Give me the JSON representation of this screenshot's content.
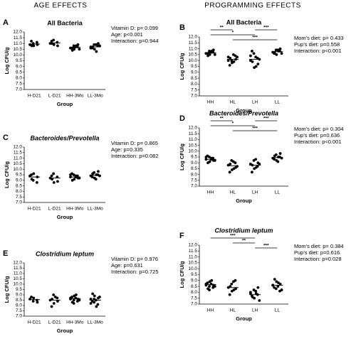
{
  "headers": [
    "AGE EFFECTS",
    "PROGRAMMING EFFECTS"
  ],
  "chart_data": [
    {
      "type": "dot",
      "panel": "A",
      "title": "All Bacteria",
      "ylabel": "Log CFU/g",
      "xlabel": "Group",
      "categories": [
        "H-D21",
        "L-D21",
        "HH-3Mo",
        "LL-3Mo"
      ],
      "points": [
        [
          10.9,
          11.0,
          10.8,
          11.1,
          10.9,
          11.2,
          10.8
        ],
        [
          11.0,
          11.3,
          10.9,
          11.1,
          10.8,
          11.2,
          11.0
        ],
        [
          10.6,
          10.8,
          10.5,
          10.7,
          10.9,
          10.6,
          10.4,
          10.7,
          10.8,
          10.5,
          10.6,
          10.7
        ],
        [
          10.7,
          10.9,
          10.5,
          10.8,
          11.0,
          10.6,
          10.7,
          10.9,
          10.3,
          10.8,
          10.6
        ]
      ],
      "means": [
        10.95,
        11.05,
        10.65,
        10.7
      ],
      "stats": [
        "Vitamin D: p= 0.099",
        "Age: p<0.001",
        "Interaction: p=0.944"
      ],
      "ylim": [
        7,
        12
      ],
      "yticks": [
        {
          "value": 7,
          "label": "7.0"
        },
        {
          "value": 7.5,
          "label": "7.5"
        },
        {
          "value": 8,
          "label": "8.0"
        },
        {
          "value": 8.5,
          "label": "8.5"
        },
        {
          "value": 9,
          "label": "9.0"
        },
        {
          "value": 9.5,
          "label": "9.5"
        },
        {
          "value": 10,
          "label": "10.0"
        },
        {
          "value": 10.5,
          "label": "10.5"
        },
        {
          "value": 11,
          "label": "11.0"
        },
        {
          "value": 11.5,
          "label": "11.5"
        },
        {
          "value": 12,
          "label": "12.0"
        }
      ]
    },
    {
      "type": "dot",
      "panel": "B",
      "title": "All Bacteria",
      "ylabel": "Log CFU/g",
      "xlabel": "Group",
      "categories": [
        "HH",
        "HL",
        "LH",
        "LL"
      ],
      "points": [
        [
          10.6,
          10.8,
          10.5,
          10.7,
          10.9,
          10.6,
          10.4,
          10.7,
          10.8,
          10.5,
          10.6,
          10.7
        ],
        [
          10.3,
          10.0,
          9.8,
          10.4,
          10.1,
          9.6,
          10.2,
          10.5,
          9.9,
          10.3,
          10.0
        ],
        [
          10.0,
          10.6,
          9.4,
          10.2,
          9.7,
          10.8,
          9.9,
          10.3,
          9.5,
          10.1,
          10.4
        ],
        [
          10.7,
          10.9,
          10.5,
          10.8,
          11.0,
          10.6,
          10.7,
          10.9,
          10.8,
          10.6
        ]
      ],
      "means": [
        10.65,
        10.1,
        10.1,
        10.75
      ],
      "stats": [
        "Mom's diet: p= 0.433",
        "Pup's diet: p=0.558",
        "Interaction: p<0.001"
      ],
      "significance": [
        "**",
        "***",
        "*",
        "***"
      ],
      "ylim": [
        7,
        12
      ],
      "yticks": [
        {
          "value": 7,
          "label": "7.0"
        },
        {
          "value": 7.5,
          "label": "7.5"
        },
        {
          "value": 8,
          "label": "8.0"
        },
        {
          "value": 8.5,
          "label": "8.5"
        },
        {
          "value": 9,
          "label": "9.0"
        },
        {
          "value": 9.5,
          "label": "9.5"
        },
        {
          "value": 10,
          "label": "10.0"
        },
        {
          "value": 10.5,
          "label": "10.5"
        },
        {
          "value": 11,
          "label": "11.0"
        },
        {
          "value": 11.5,
          "label": "11.5"
        },
        {
          "value": 12,
          "label": "12.0"
        }
      ]
    },
    {
      "type": "dot",
      "panel": "C",
      "title": "Bacteroides/Prevotella",
      "ylabel": "Log CFU/g",
      "xlabel": "Group",
      "categories": [
        "H-D21",
        "L-D21",
        "HH-3Mo",
        "LL-3Mo"
      ],
      "points": [
        [
          9.4,
          9.0,
          9.6,
          8.8,
          9.3,
          9.5,
          9.1
        ],
        [
          9.2,
          9.6,
          8.8,
          9.3,
          8.9,
          9.4,
          9.1
        ],
        [
          9.3,
          9.5,
          9.1,
          9.4,
          9.2,
          9.6,
          9.0,
          9.3,
          9.4,
          9.2,
          9.5
        ],
        [
          9.4,
          9.7,
          9.2,
          9.5,
          9.8,
          9.3,
          9.6,
          9.1,
          9.5,
          9.4
        ]
      ],
      "means": [
        9.3,
        9.2,
        9.3,
        9.45
      ],
      "stats": [
        "Vitamin D: p= 0.865",
        "Age: p=0.335",
        "Interaction: p=0.082"
      ],
      "ylim": [
        7,
        12
      ],
      "yticks": [
        {
          "value": 7,
          "label": "7.0"
        },
        {
          "value": 7.5,
          "label": "7.5"
        },
        {
          "value": 8,
          "label": "8.0"
        },
        {
          "value": 8.5,
          "label": "8.5"
        },
        {
          "value": 9,
          "label": "9.0"
        },
        {
          "value": 9.5,
          "label": "9.5"
        },
        {
          "value": 10,
          "label": "10.0"
        },
        {
          "value": 10.5,
          "label": "10.5"
        },
        {
          "value": 11,
          "label": "11.0"
        },
        {
          "value": 11.5,
          "label": "11.5"
        },
        {
          "value": 12,
          "label": "12.0"
        }
      ]
    },
    {
      "type": "dot",
      "panel": "D",
      "title": "Bacteroides/Prevotella",
      "ylabel": "Log CFU/g",
      "xlabel": "Group",
      "categories": [
        "HH",
        "HL",
        "LH",
        "LL"
      ],
      "points": [
        [
          9.3,
          9.5,
          9.1,
          9.4,
          9.2,
          9.6,
          9.0,
          9.3,
          9.4,
          9.2,
          9.5
        ],
        [
          8.8,
          9.2,
          8.4,
          9.0,
          8.6,
          8.2,
          8.9,
          9.1,
          8.5,
          8.7
        ],
        [
          8.9,
          9.2,
          8.5,
          8.7,
          9.0,
          8.2,
          8.8,
          9.3,
          8.6,
          8.9
        ],
        [
          9.4,
          9.7,
          9.2,
          9.5,
          9.8,
          9.3,
          9.6,
          9.1,
          9.5,
          9.4
        ]
      ],
      "means": [
        9.3,
        8.75,
        8.8,
        9.45
      ],
      "stats": [
        "Mom's diet: p= 0.304",
        "Pup's diet: p=0.636",
        "Interaction: p<0.001"
      ],
      "significance": [
        "**",
        "***",
        "*",
        "***"
      ],
      "ylim": [
        7,
        12
      ],
      "yticks": [
        {
          "value": 7,
          "label": "7.0"
        },
        {
          "value": 7.5,
          "label": "7.5"
        },
        {
          "value": 8,
          "label": "8.0"
        },
        {
          "value": 8.5,
          "label": "8.5"
        },
        {
          "value": 9,
          "label": "9.0"
        },
        {
          "value": 9.5,
          "label": "9.5"
        },
        {
          "value": 10,
          "label": "10.0"
        },
        {
          "value": 10.5,
          "label": "10.5"
        },
        {
          "value": 11,
          "label": "11.0"
        },
        {
          "value": 11.5,
          "label": "11.5"
        },
        {
          "value": 12,
          "label": "12.0"
        }
      ]
    },
    {
      "type": "dot",
      "panel": "E",
      "title": "Clostridium leptum",
      "ylabel": "Log CFU/g",
      "xlabel": "Group",
      "categories": [
        "H-D21",
        "L-D21",
        "HH-3Mo",
        "LL-3Mo"
      ],
      "points": [
        [
          8.6,
          8.4,
          8.7,
          8.5,
          8.3,
          8.8
        ],
        [
          8.5,
          9.0,
          8.2,
          8.7,
          8.4,
          7.9,
          8.6,
          8.8
        ],
        [
          8.7,
          8.5,
          8.9,
          8.4,
          8.6,
          8.8,
          8.3,
          8.7,
          9.0,
          8.5,
          8.6,
          8.2
        ],
        [
          8.6,
          8.3,
          8.9,
          8.1,
          8.7,
          8.4,
          9.1,
          8.5,
          7.9,
          8.8,
          8.2,
          8.6
        ]
      ],
      "means": [
        8.55,
        8.5,
        8.65,
        8.5
      ],
      "stats": [
        "Vitamin D: p= 0.976",
        "Age: p=0.631",
        "Interaction: p=0.725"
      ],
      "ylim": [
        7,
        12
      ],
      "yticks": [
        {
          "value": 7,
          "label": "7.0"
        },
        {
          "value": 7.5,
          "label": "7.5"
        },
        {
          "value": 8,
          "label": "8.0"
        },
        {
          "value": 8.5,
          "label": "8.5"
        },
        {
          "value": 9,
          "label": "9.0"
        },
        {
          "value": 9.5,
          "label": "9.5"
        },
        {
          "value": 10,
          "label": "10.0"
        },
        {
          "value": 10.5,
          "label": "10.5"
        },
        {
          "value": 11,
          "label": "11.0"
        },
        {
          "value": 11.5,
          "label": "11.5"
        },
        {
          "value": 12,
          "label": "12.0"
        }
      ]
    },
    {
      "type": "dot",
      "panel": "F",
      "title": "Clostridium leptum",
      "ylabel": "Log CFU/g",
      "xlabel": "Group",
      "categories": [
        "HH",
        "HL",
        "LH",
        "LL"
      ],
      "points": [
        [
          8.7,
          8.5,
          8.9,
          8.4,
          8.6,
          8.8,
          8.3,
          8.7,
          9.0,
          8.5,
          8.6,
          8.2
        ],
        [
          8.4,
          8.7,
          8.1,
          9.0,
          8.3,
          7.8,
          8.5,
          8.9,
          8.2
        ],
        [
          7.9,
          8.2,
          7.5,
          7.8,
          8.4,
          7.7,
          7.6,
          8.1,
          7.9,
          7.3,
          8.0
        ],
        [
          8.6,
          8.3,
          8.9,
          8.1,
          8.7,
          8.4,
          9.1,
          8.5,
          8.8,
          8.2,
          8.6
        ]
      ],
      "means": [
        8.65,
        8.4,
        7.8,
        8.6
      ],
      "stats": [
        "Mom's diet: p= 0.384",
        "Pup's diet: p=0.616",
        "Interaction: p=0.028"
      ],
      "significance": [
        "***",
        "**",
        "***"
      ],
      "ylim": [
        7,
        12
      ],
      "yticks": [
        {
          "value": 7,
          "label": "7.0"
        },
        {
          "value": 7.5,
          "label": "7.5"
        },
        {
          "value": 8,
          "label": "8.0"
        },
        {
          "value": 8.5,
          "label": "8.5"
        },
        {
          "value": 9,
          "label": "9.0"
        },
        {
          "value": 9.5,
          "label": "9.5"
        },
        {
          "value": 10,
          "label": "10.0"
        },
        {
          "value": 10.5,
          "label": "10.5"
        },
        {
          "value": 11,
          "label": "11.0"
        },
        {
          "value": 11.5,
          "label": "11.5"
        },
        {
          "value": 12,
          "label": "12.0"
        }
      ]
    }
  ]
}
